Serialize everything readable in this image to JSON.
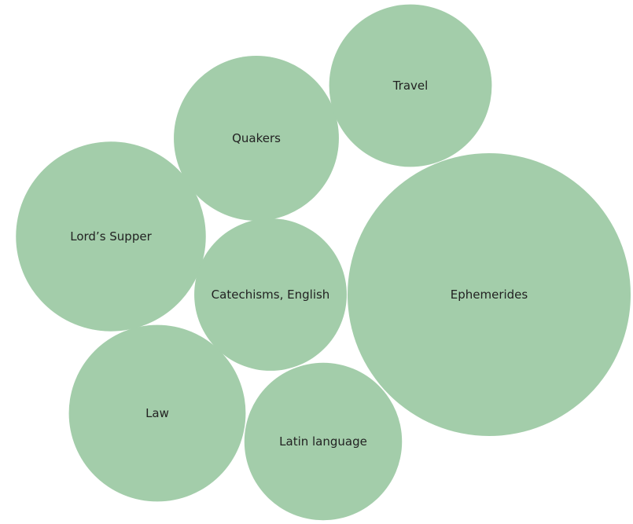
{
  "chart_data": {
    "type": "packed-bubble",
    "color": "#a3cdaa",
    "label_color": "#222222",
    "bubbles": [
      {
        "label": "Ephemerides",
        "value": 100
      },
      {
        "label": "Lord’s Supper",
        "value": 45
      },
      {
        "label": "Law",
        "value": 39
      },
      {
        "label": "Quakers",
        "value": 34
      },
      {
        "label": "Travel",
        "value": 33
      },
      {
        "label": "Latin language",
        "value": 31
      },
      {
        "label": "Catechisms, English",
        "value": 29
      }
    ]
  }
}
